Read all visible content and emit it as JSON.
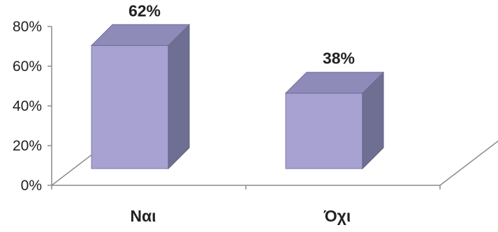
{
  "chart_data": {
    "type": "bar",
    "style": "3d-column",
    "categories": [
      "Ναι",
      "Όχι"
    ],
    "values": [
      62,
      38
    ],
    "data_labels": [
      "62%",
      "38%"
    ],
    "ylim": [
      0,
      80
    ],
    "yticks": [
      "0%",
      "20%",
      "40%",
      "60%",
      "80%"
    ],
    "grid": false,
    "legend": "none",
    "colors": {
      "front": "#a8a2d3",
      "side": "#6f6f93",
      "top": "#8f8bb8",
      "axis": "#8a8a8a"
    }
  }
}
